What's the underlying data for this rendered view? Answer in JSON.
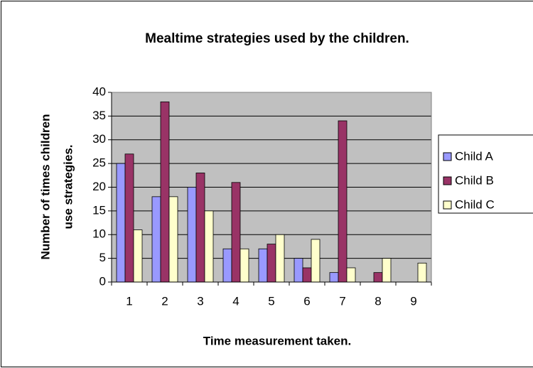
{
  "chart_data": {
    "type": "bar",
    "title": "Mealtime strategies used by the children.",
    "xlabel": "Time measurement taken.",
    "ylabel": [
      "Number of times children",
      "use strategies."
    ],
    "categories": [
      "1",
      "2",
      "3",
      "4",
      "5",
      "6",
      "7",
      "8",
      "9"
    ],
    "series": [
      {
        "name": "Child A",
        "color": "#9999ff",
        "values": [
          25,
          18,
          20,
          7,
          7,
          5,
          2,
          0,
          0
        ]
      },
      {
        "name": "Child B",
        "color": "#993366",
        "values": [
          27,
          38,
          23,
          21,
          8,
          3,
          34,
          2,
          0
        ]
      },
      {
        "name": "Child C",
        "color": "#ffffcc",
        "values": [
          11,
          18,
          15,
          7,
          10,
          9,
          3,
          5,
          4
        ]
      }
    ],
    "ylim": [
      0,
      40
    ],
    "yticks": [
      0,
      5,
      10,
      15,
      20,
      25,
      30,
      35,
      40
    ],
    "grid": true,
    "legend": "right"
  }
}
